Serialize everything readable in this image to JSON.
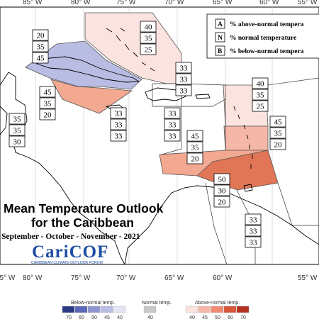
{
  "title_line1": "Mean Temperature Outlook",
  "title_line2": "for the Caribbean",
  "season": "September - October - November - 2021",
  "logo_text": "CariCOF",
  "logo_subtitle": "CARIBBEAN CLIMATE OUTLOOK FORUM",
  "longitudes": [
    "85° W",
    "80° W",
    "75° W",
    "70° W",
    "65° W",
    "60° W",
    "55° W"
  ],
  "key": [
    {
      "letter": "A",
      "text": "% above-normal tempera"
    },
    {
      "letter": "N",
      "text": "% normal temperature"
    },
    {
      "letter": "B",
      "text": "% below-normal tempera"
    }
  ],
  "legend": {
    "below_label": "Below-normal temp.",
    "normal_label": "Normal temp.",
    "above_label": "Above-normal temp.",
    "below_ticks": [
      "70",
      "60",
      "50",
      "45",
      "40"
    ],
    "normal_tick": "40",
    "above_ticks": [
      "40",
      "45",
      "50",
      "60",
      "70"
    ],
    "below_colors": [
      "#2b3a85",
      "#5b67b8",
      "#8e95d0",
      "#b9bde3",
      "#e3e4f4"
    ],
    "normal_color": "#c8c8c8",
    "above_colors": [
      "#fbe3df",
      "#f5b7a8",
      "#ee8a72",
      "#d9563a",
      "#b53120"
    ]
  },
  "regions": [
    {
      "id": "bahamas",
      "color": "#fbe3df"
    },
    {
      "id": "cuba",
      "color": "#b9bde3"
    },
    {
      "id": "cayman",
      "color": "#f2a891"
    },
    {
      "id": "leeward",
      "color": "#fbe3df"
    },
    {
      "id": "windward",
      "color": "#f5b7a8"
    },
    {
      "id": "south-caribbean",
      "color": "#f2a891"
    },
    {
      "id": "trinidad",
      "color": "#e07656"
    }
  ],
  "probability_boxes": [
    {
      "values": [
        "40",
        "35",
        "25"
      ]
    },
    {
      "values": [
        "20",
        "35",
        "45"
      ]
    },
    {
      "values": [
        "33",
        "33",
        "33"
      ]
    },
    {
      "values": [
        "45",
        "35",
        "20"
      ]
    },
    {
      "values": [
        "40",
        "35",
        "25"
      ]
    },
    {
      "values": [
        "35",
        "35",
        "30"
      ]
    },
    {
      "values": [
        "33",
        "33",
        "33"
      ]
    },
    {
      "values": [
        "33",
        "33",
        "33"
      ]
    },
    {
      "values": [
        "45",
        "35",
        "20"
      ]
    },
    {
      "values": [
        "45",
        "35",
        "20"
      ]
    },
    {
      "values": [
        "50",
        "30",
        "20"
      ]
    },
    {
      "values": [
        "33",
        "33",
        "33"
      ]
    }
  ]
}
